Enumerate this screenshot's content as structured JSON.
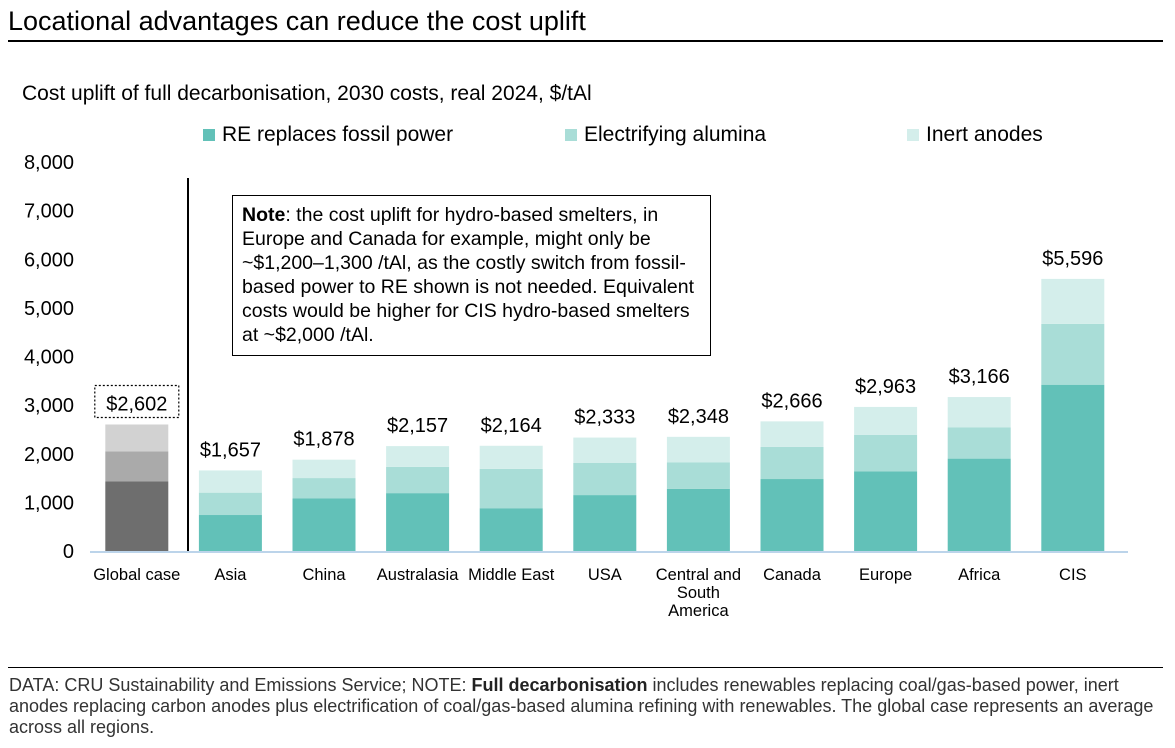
{
  "headline": "Locational advantages can reduce the cost uplift",
  "note": {
    "label": "Note",
    "text": ": the cost uplift for hydro-based smelters, in Europe and Canada for example, might only be ~$1,200–1,300 /tAl, as the costly switch from fossil-based power to RE shown is not needed. Equivalent costs would be higher for CIS hydro-based smelters at ~$2,000 /tAl."
  },
  "footer": {
    "prefix": "DATA: CRU Sustainability and Emissions Service; NOTE: ",
    "bold": "Full decarbonisation",
    "suffix": " includes renewables replacing coal/gas-based power, inert anodes replacing carbon anodes plus electrification of coal/gas-based alumina refining with renewables. The global case represents an average across all regions."
  },
  "colors": {
    "re": "#62c1b8",
    "alumina": "#a9ddd7",
    "anodes": "#d4eeeb",
    "global_re": "#6e6e6e",
    "global_alumina": "#aaaaaa",
    "global_anodes": "#d2d2d2",
    "axis": "#bcd4ea"
  },
  "chart_data": {
    "type": "bar",
    "stacked": true,
    "title": "Cost uplift of full decarbonisation, 2030 costs, real 2024, $/tAl",
    "xlabel": "",
    "ylabel": "",
    "ylim": [
      0,
      8000
    ],
    "yticks": [
      "0",
      "1,000",
      "2,000",
      "3,000",
      "4,000",
      "5,000",
      "6,000",
      "7,000",
      "8,000"
    ],
    "legend_position": "top",
    "categories": [
      "Global case",
      "Asia",
      "China",
      "Australasia",
      "Middle East",
      "USA",
      "Central and South America",
      "Canada",
      "Europe",
      "Africa",
      "CIS"
    ],
    "category_lines": [
      [
        "Global case"
      ],
      [
        "Asia"
      ],
      [
        "China"
      ],
      [
        "Australasia"
      ],
      [
        "Middle East"
      ],
      [
        "USA"
      ],
      [
        "Central and",
        "South",
        "America"
      ],
      [
        "Canada"
      ],
      [
        "Europe"
      ],
      [
        "Africa"
      ],
      [
        "CIS"
      ]
    ],
    "series": [
      {
        "name": "RE replaces fossil power",
        "values": [
          1430,
          740,
          1080,
          1190,
          880,
          1150,
          1280,
          1480,
          1640,
          1900,
          3420
        ]
      },
      {
        "name": "Electrifying alumina",
        "values": [
          620,
          460,
          420,
          540,
          810,
          660,
          540,
          660,
          750,
          640,
          1250
        ]
      },
      {
        "name": "Inert anodes",
        "values": [
          552,
          457,
          378,
          427,
          474,
          523,
          528,
          526,
          573,
          626,
          926
        ]
      }
    ],
    "totals": [
      2602,
      1657,
      1878,
      2157,
      2164,
      2333,
      2348,
      2666,
      2963,
      3166,
      5596
    ],
    "total_labels": [
      "$2,602",
      "$1,657",
      "$1,878",
      "$2,157",
      "$2,164",
      "$2,333",
      "$2,348",
      "$2,666",
      "$2,963",
      "$3,166",
      "$5,596"
    ]
  }
}
